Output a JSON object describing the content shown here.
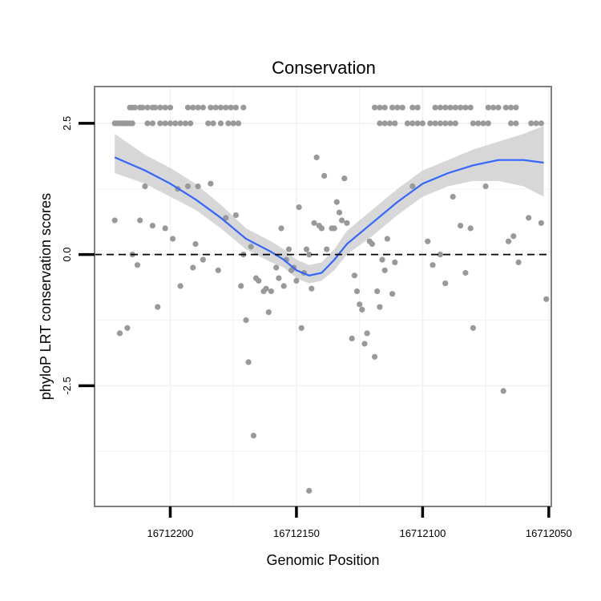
{
  "chart_data": {
    "type": "scatter",
    "title": "Conservation",
    "xlabel": "Genomic Position",
    "ylabel": "phyloP LRT conservation scores",
    "x_reversed": true,
    "xlim": [
      16712230,
      16712049
    ],
    "ylim": [
      -4.8,
      3.2
    ],
    "x_ticks": [
      16712200,
      16712150,
      16712100,
      16712050
    ],
    "x_tick_labels": [
      "16712200",
      "16712150",
      "16712100",
      "16712050"
    ],
    "y_ticks": [
      -2.5,
      0.0,
      2.5
    ],
    "y_tick_labels": [
      "-2.5",
      "0.0",
      "2.5"
    ],
    "grid": true,
    "reference_line": {
      "y": 0,
      "style": "dashed"
    },
    "colors": {
      "points": "#999999",
      "smooth_line": "#3366ff",
      "ribbon": "#d3d3d3",
      "border": "#808080"
    },
    "series": [
      {
        "kind": "points",
        "points": [
          [
            16712222,
            2.5
          ],
          [
            16712221,
            2.5
          ],
          [
            16712220,
            2.5
          ],
          [
            16712219,
            2.5
          ],
          [
            16712218,
            2.5
          ],
          [
            16712217,
            2.5
          ],
          [
            16712216,
            2.5
          ],
          [
            16712215,
            2.5
          ],
          [
            16712216,
            2.8
          ],
          [
            16712215,
            2.8
          ],
          [
            16712214,
            2.8
          ],
          [
            16712212,
            2.8
          ],
          [
            16712211,
            2.8
          ],
          [
            16712209,
            2.8
          ],
          [
            16712207,
            2.8
          ],
          [
            16712206,
            2.8
          ],
          [
            16712204,
            2.8
          ],
          [
            16712202,
            2.8
          ],
          [
            16712200,
            2.8
          ],
          [
            16712209,
            2.5
          ],
          [
            16712207,
            2.5
          ],
          [
            16712204,
            2.5
          ],
          [
            16712202,
            2.5
          ],
          [
            16712200,
            2.5
          ],
          [
            16712198,
            2.5
          ],
          [
            16712196,
            2.5
          ],
          [
            16712194,
            2.5
          ],
          [
            16712192,
            2.5
          ],
          [
            16712193,
            2.8
          ],
          [
            16712191,
            2.8
          ],
          [
            16712189,
            2.8
          ],
          [
            16712187,
            2.8
          ],
          [
            16712184,
            2.8
          ],
          [
            16712182,
            2.8
          ],
          [
            16712180,
            2.8
          ],
          [
            16712178,
            2.8
          ],
          [
            16712176,
            2.8
          ],
          [
            16712174,
            2.8
          ],
          [
            16712171,
            2.8
          ],
          [
            16712185,
            2.5
          ],
          [
            16712183,
            2.5
          ],
          [
            16712180,
            2.5
          ],
          [
            16712177,
            2.5
          ],
          [
            16712175,
            2.5
          ],
          [
            16712173,
            2.5
          ],
          [
            16712119,
            2.8
          ],
          [
            16712117,
            2.8
          ],
          [
            16712115,
            2.8
          ],
          [
            16712112,
            2.8
          ],
          [
            16712110,
            2.8
          ],
          [
            16712108,
            2.8
          ],
          [
            16712104,
            2.8
          ],
          [
            16712102,
            2.8
          ],
          [
            16712095,
            2.8
          ],
          [
            16712093,
            2.8
          ],
          [
            16712091,
            2.8
          ],
          [
            16712089,
            2.8
          ],
          [
            16712087,
            2.8
          ],
          [
            16712085,
            2.8
          ],
          [
            16712083,
            2.8
          ],
          [
            16712081,
            2.8
          ],
          [
            16712074,
            2.8
          ],
          [
            16712072,
            2.8
          ],
          [
            16712070,
            2.8
          ],
          [
            16712067,
            2.8
          ],
          [
            16712065,
            2.8
          ],
          [
            16712063,
            2.8
          ],
          [
            16712117,
            2.5
          ],
          [
            16712115,
            2.5
          ],
          [
            16712113,
            2.5
          ],
          [
            16712111,
            2.5
          ],
          [
            16712106,
            2.5
          ],
          [
            16712104,
            2.5
          ],
          [
            16712102,
            2.5
          ],
          [
            16712100,
            2.5
          ],
          [
            16712097,
            2.5
          ],
          [
            16712095,
            2.5
          ],
          [
            16712093,
            2.5
          ],
          [
            16712091,
            2.5
          ],
          [
            16712089,
            2.5
          ],
          [
            16712087,
            2.5
          ],
          [
            16712080,
            2.5
          ],
          [
            16712078,
            2.5
          ],
          [
            16712076,
            2.5
          ],
          [
            16712074,
            2.5
          ],
          [
            16712065,
            2.5
          ],
          [
            16712063,
            2.5
          ],
          [
            16712057,
            2.5
          ],
          [
            16712055,
            2.5
          ],
          [
            16712053,
            2.5
          ],
          [
            16712222,
            0.65
          ],
          [
            16712220,
            -1.5
          ],
          [
            16712217,
            -1.4
          ],
          [
            16712215,
            0.0
          ],
          [
            16712213,
            -0.2
          ],
          [
            16712212,
            0.65
          ],
          [
            16712210,
            1.3
          ],
          [
            16712207,
            0.55
          ],
          [
            16712205,
            -1.0
          ],
          [
            16712202,
            0.5
          ],
          [
            16712199,
            0.3
          ],
          [
            16712197,
            1.25
          ],
          [
            16712196,
            -0.6
          ],
          [
            16712193,
            1.3
          ],
          [
            16712191,
            -0.25
          ],
          [
            16712190,
            0.2
          ],
          [
            16712189,
            1.3
          ],
          [
            16712187,
            -0.1
          ],
          [
            16712184,
            1.35
          ],
          [
            16712181,
            -0.3
          ],
          [
            16712178,
            0.7
          ],
          [
            16712174,
            0.75
          ],
          [
            16712172,
            -0.6
          ],
          [
            16712171,
            0.0
          ],
          [
            16712170,
            -1.25
          ],
          [
            16712169,
            -2.05
          ],
          [
            16712168,
            0.15
          ],
          [
            16712167,
            -3.45
          ],
          [
            16712166,
            -0.45
          ],
          [
            16712165,
            -0.5
          ],
          [
            16712163,
            -0.7
          ],
          [
            16712162,
            -0.65
          ],
          [
            16712161,
            -1.1
          ],
          [
            16712160,
            -0.7
          ],
          [
            16712158,
            -0.25
          ],
          [
            16712157,
            -0.45
          ],
          [
            16712156,
            0.5
          ],
          [
            16712155,
            -0.6
          ],
          [
            16712154,
            -0.1
          ],
          [
            16712153,
            0.1
          ],
          [
            16712152,
            -0.3
          ],
          [
            16712151,
            -0.25
          ],
          [
            16712150,
            -0.5
          ],
          [
            16712149,
            0.9
          ],
          [
            16712148,
            -1.4
          ],
          [
            16712147,
            -0.35
          ],
          [
            16712146,
            0.1
          ],
          [
            16712145,
            0.0
          ],
          [
            16712144,
            -0.65
          ],
          [
            16712143,
            0.6
          ],
          [
            16712142,
            1.85
          ],
          [
            16712141,
            0.55
          ],
          [
            16712140,
            0.5
          ],
          [
            16712139,
            1.5
          ],
          [
            16712138,
            0.1
          ],
          [
            16712136,
            0.5
          ],
          [
            16712135,
            0.5
          ],
          [
            16712134,
            1.0
          ],
          [
            16712133,
            0.8
          ],
          [
            16712132,
            0.65
          ],
          [
            16712131,
            1.45
          ],
          [
            16712130,
            0.6
          ],
          [
            16712128,
            -1.6
          ],
          [
            16712127,
            -0.4
          ],
          [
            16712126,
            -0.7
          ],
          [
            16712125,
            -0.95
          ],
          [
            16712124,
            -1.05
          ],
          [
            16712123,
            -1.7
          ],
          [
            16712122,
            -1.5
          ],
          [
            16712121,
            0.25
          ],
          [
            16712120,
            0.2
          ],
          [
            16712119,
            -1.95
          ],
          [
            16712118,
            -0.7
          ],
          [
            16712117,
            -1.0
          ],
          [
            16712116,
            -0.1
          ],
          [
            16712115,
            -0.3
          ],
          [
            16712114,
            0.3
          ],
          [
            16712112,
            -0.75
          ],
          [
            16712111,
            -0.15
          ],
          [
            16712104,
            1.3
          ],
          [
            16712098,
            0.25
          ],
          [
            16712096,
            -0.2
          ],
          [
            16712093,
            0.0
          ],
          [
            16712091,
            -0.55
          ],
          [
            16712088,
            1.1
          ],
          [
            16712085,
            0.55
          ],
          [
            16712083,
            -0.35
          ],
          [
            16712081,
            0.5
          ],
          [
            16712080,
            -1.4
          ],
          [
            16712075,
            1.3
          ],
          [
            16712068,
            -2.6
          ],
          [
            16712066,
            0.25
          ],
          [
            16712064,
            0.35
          ],
          [
            16712062,
            -0.15
          ],
          [
            16712058,
            0.7
          ],
          [
            16712053,
            0.6
          ],
          [
            16712051,
            -0.85
          ],
          [
            16712145,
            -4.5
          ]
        ]
      },
      {
        "kind": "smooth",
        "x": [
          16712222,
          16712210,
          16712200,
          16712190,
          16712180,
          16712170,
          16712160,
          16712155,
          16712150,
          16712145,
          16712140,
          16712135,
          16712130,
          16712120,
          16712110,
          16712100,
          16712090,
          16712080,
          16712070,
          16712060,
          16712052
        ],
        "y": [
          1.85,
          1.6,
          1.35,
          1.05,
          0.7,
          0.3,
          0.05,
          -0.1,
          -0.3,
          -0.4,
          -0.35,
          -0.1,
          0.2,
          0.6,
          1.0,
          1.35,
          1.55,
          1.7,
          1.8,
          1.8,
          1.75
        ],
        "lower": [
          1.55,
          1.35,
          1.1,
          0.85,
          0.5,
          0.1,
          -0.15,
          -0.25,
          -0.45,
          -0.55,
          -0.5,
          -0.3,
          0.0,
          0.35,
          0.75,
          1.1,
          1.3,
          1.4,
          1.4,
          1.3,
          1.1
        ],
        "upper": [
          2.3,
          1.9,
          1.65,
          1.35,
          0.95,
          0.5,
          0.25,
          0.1,
          -0.1,
          -0.2,
          -0.15,
          0.1,
          0.45,
          0.85,
          1.25,
          1.6,
          1.8,
          2.0,
          2.15,
          2.3,
          2.45
        ]
      }
    ]
  }
}
